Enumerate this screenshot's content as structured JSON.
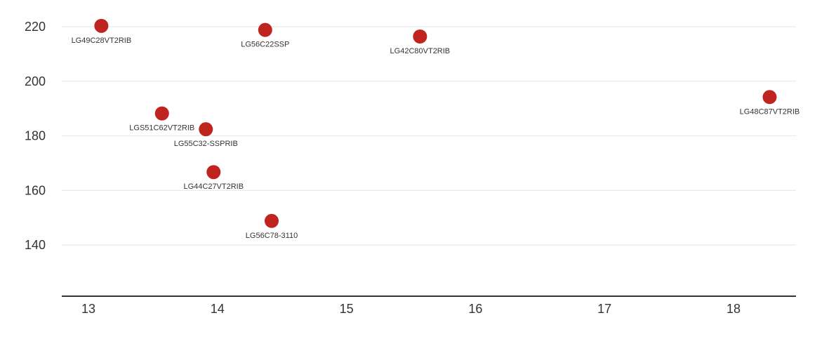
{
  "chart_data": {
    "type": "scatter",
    "title": "",
    "xlabel": "",
    "ylabel": "",
    "xlim": [
      12.8,
      18.5
    ],
    "ylim": [
      120,
      227
    ],
    "x_ticks": [
      13,
      14,
      15,
      16,
      17,
      18
    ],
    "y_ticks": [
      140,
      160,
      180,
      200,
      220
    ],
    "grid": "horizontal",
    "point_color": "#c0241f",
    "points": [
      {
        "label": "LG49C28VT2RIB",
        "x": 13.1,
        "y": 220.3,
        "label_pos": "below"
      },
      {
        "label": "LG56C22SSP",
        "x": 14.37,
        "y": 218.8,
        "label_pos": "below"
      },
      {
        "label": "LG42C80VT2RIB",
        "x": 15.57,
        "y": 216.4,
        "label_pos": "below"
      },
      {
        "label": "LG48C87VT2RIB",
        "x": 18.28,
        "y": 194.2,
        "label_pos": "below"
      },
      {
        "label": "LGS51C62VT2RIB",
        "x": 13.57,
        "y": 188.2,
        "label_pos": "below"
      },
      {
        "label": "LG55C32-SSPRIB",
        "x": 13.91,
        "y": 182.4,
        "label_pos": "below"
      },
      {
        "label": "LG44C27VT2RIB",
        "x": 13.97,
        "y": 166.7,
        "label_pos": "below"
      },
      {
        "label": "LG56C78-3110",
        "x": 14.42,
        "y": 148.8,
        "label_pos": "below"
      }
    ]
  }
}
